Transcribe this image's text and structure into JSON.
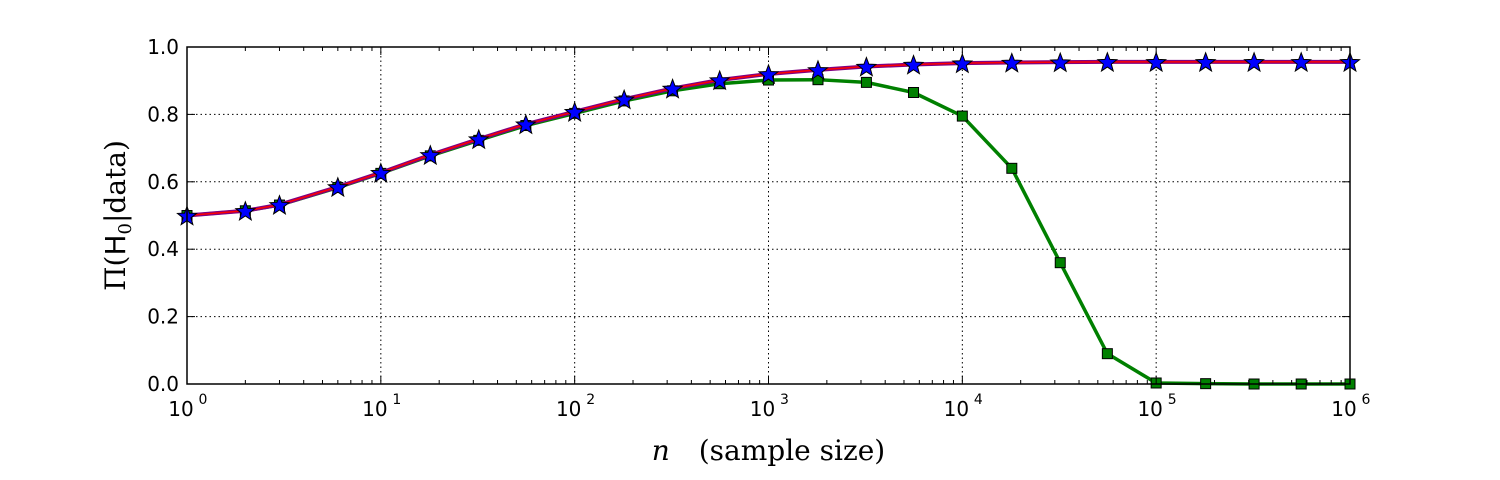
{
  "chart_data": {
    "type": "line",
    "title": "",
    "xlabel": {
      "var": "n",
      "text": "(sample size)"
    },
    "ylabel": {
      "pre": "Π(",
      "H": "H",
      "sub": "0",
      "post": "|data)"
    },
    "xscale": "log",
    "xlim": [
      1,
      1000000
    ],
    "ylim": [
      0.0,
      1.0
    ],
    "grid": true,
    "x_ticks": [
      {
        "base": "10",
        "exp": "0",
        "value": 1
      },
      {
        "base": "10",
        "exp": "1",
        "value": 10
      },
      {
        "base": "10",
        "exp": "2",
        "value": 100
      },
      {
        "base": "10",
        "exp": "3",
        "value": 1000
      },
      {
        "base": "10",
        "exp": "4",
        "value": 10000
      },
      {
        "base": "10",
        "exp": "5",
        "value": 100000
      },
      {
        "base": "10",
        "exp": "6",
        "value": 1000000
      }
    ],
    "y_ticks": [
      "0.0",
      "0.2",
      "0.4",
      "0.6",
      "0.8",
      "1.0"
    ],
    "x": [
      1,
      2,
      3,
      6,
      10,
      18,
      32,
      56,
      100,
      180,
      320,
      560,
      1000,
      1800,
      3200,
      5600,
      10000,
      18000,
      32000,
      56000,
      100000,
      180000,
      320000,
      560000,
      1000000
    ],
    "series": [
      {
        "name": "green-squares",
        "color": "#008000",
        "marker": "square",
        "values": [
          0.5,
          0.514,
          0.531,
          0.583,
          0.625,
          0.677,
          0.723,
          0.767,
          0.803,
          0.84,
          0.87,
          0.891,
          0.902,
          0.903,
          0.895,
          0.865,
          0.795,
          0.64,
          0.36,
          0.09,
          0.003,
          0.001,
          0.0,
          0.0,
          0.0
        ]
      },
      {
        "name": "red-line",
        "color": "#ff0000",
        "marker": "none",
        "values": [
          0.5,
          0.514,
          0.532,
          0.585,
          0.627,
          0.68,
          0.727,
          0.771,
          0.808,
          0.845,
          0.877,
          0.902,
          0.92,
          0.932,
          0.942,
          0.948,
          0.952,
          0.954,
          0.955,
          0.956,
          0.956,
          0.956,
          0.956,
          0.956,
          0.956
        ]
      },
      {
        "name": "blue-stars",
        "color": "#0000ff",
        "marker": "star",
        "values": [
          0.5,
          0.514,
          0.532,
          0.585,
          0.627,
          0.68,
          0.727,
          0.771,
          0.808,
          0.845,
          0.877,
          0.902,
          0.92,
          0.932,
          0.942,
          0.948,
          0.952,
          0.954,
          0.955,
          0.956,
          0.956,
          0.956,
          0.956,
          0.956,
          0.956
        ]
      }
    ],
    "connector_color": "#800080"
  }
}
